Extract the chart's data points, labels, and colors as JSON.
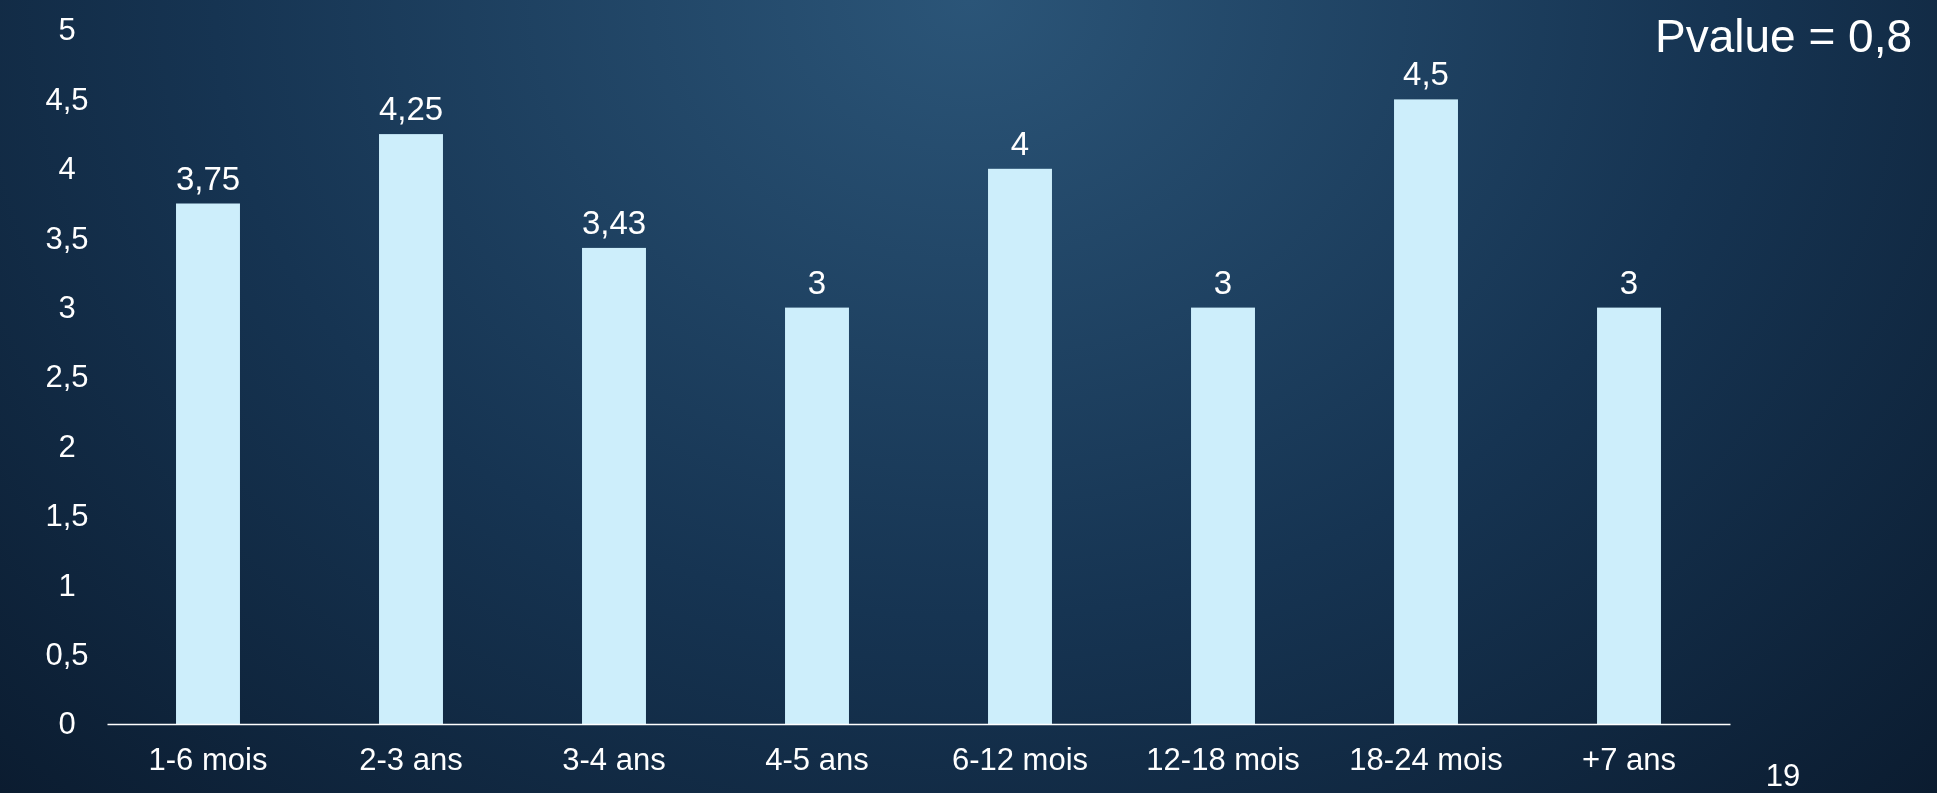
{
  "chart_data": {
    "type": "bar",
    "categories": [
      "1-6 mois",
      "2-3 ans",
      "3-4 ans",
      "4-5 ans",
      "6-12 mois",
      "12-18 mois",
      "18-24 mois",
      "+7 ans"
    ],
    "values": [
      3.75,
      4.25,
      3.43,
      3,
      4,
      3,
      4.5,
      3
    ],
    "value_labels": [
      "3,75",
      "4,25",
      "3,43",
      "3",
      "4",
      "3",
      "4,5",
      "3"
    ],
    "color": "#cdeefb",
    "ylim": [
      0,
      5
    ],
    "yticks": [
      0,
      {
        "value": 0.5,
        "label": "0,5"
      },
      1,
      {
        "value": 1.5,
        "label": "1,5"
      },
      2,
      {
        "value": 2.5,
        "label": "2,5"
      },
      3,
      {
        "value": 3.5,
        "label": "3,5"
      },
      4,
      {
        "value": 4.5,
        "label": "4,5"
      },
      5
    ],
    "grid": false,
    "annotations": [
      "Pvalue = 0,8",
      "19"
    ]
  }
}
